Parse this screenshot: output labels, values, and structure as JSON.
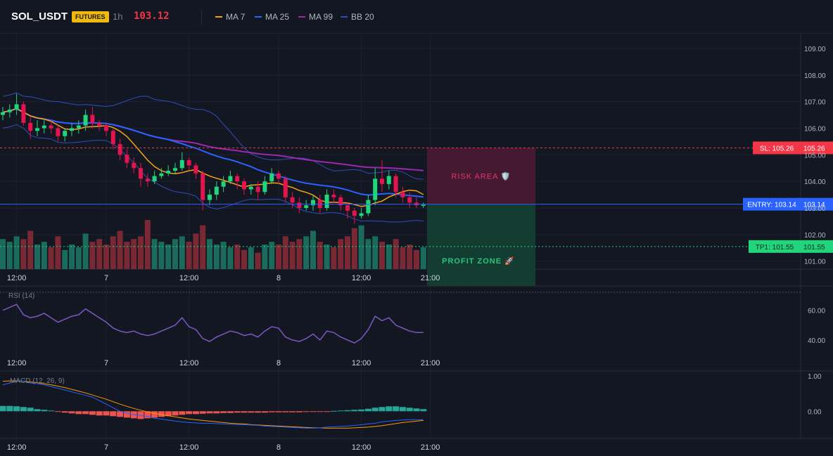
{
  "header": {
    "symbol": "SOL_USDT",
    "badge": "FUTURES",
    "timeframe": "1h",
    "last_price": "103.12"
  },
  "legend": [
    {
      "label": "MA 7",
      "color": "#f7a21b"
    },
    {
      "label": "MA 25",
      "color": "#2962ff"
    },
    {
      "label": "MA 99",
      "color": "#9c27b0"
    },
    {
      "label": "BB 20",
      "color": "#2f4dbb"
    }
  ],
  "colors": {
    "up": "#22d47b",
    "down": "#e4144e",
    "vol_up": "#1b6b5c",
    "vol_down": "#7a2934",
    "rsi": "#7e57c2",
    "macd": "#2962ff",
    "signal": "#ff9800",
    "hist_up": "#26a69a",
    "hist_down": "#ef5350"
  },
  "axes": {
    "price_ticks": [
      "109.00",
      "108.00",
      "107.00",
      "106.00",
      "105.00",
      "104.00",
      "103.00",
      "102.00",
      "101.00"
    ],
    "time_ticks": [
      "12:00",
      "7",
      "12:00",
      "8",
      "12:00",
      "21:00"
    ],
    "rsi_ticks": [
      "60.00",
      "40.00"
    ],
    "macd_ticks": [
      "1.00",
      "0.00"
    ]
  },
  "indicators": {
    "rsi_label": "RSI (14)",
    "macd_label": "MACD (12, 26, 9)"
  },
  "levels": {
    "sl": {
      "value": 105.26,
      "tag": "SL: 105.26",
      "price": "105.26"
    },
    "entry": {
      "value": 103.14,
      "tag": "ENTRY: 103.14",
      "price": "103.14"
    },
    "tp1": {
      "value": 101.55,
      "tag": "TP1: 101.55",
      "price": "101.55"
    }
  },
  "zones": {
    "risk_label": "RISK AREA 🛡️",
    "profit_label": "PROFIT ZONE 🚀"
  },
  "chart_data": {
    "type": "candlestick",
    "open": [
      106.5,
      106.6,
      106.7,
      106.9,
      106.2,
      105.9,
      106.0,
      106.1,
      106.0,
      105.7,
      105.9,
      106.0,
      106.1,
      106.5,
      106.2,
      106.1,
      105.9,
      105.4,
      105.0,
      104.7,
      104.5,
      104.1,
      104.0,
      104.2,
      104.3,
      104.4,
      104.5,
      104.8,
      104.6,
      104.3,
      103.3,
      103.5,
      103.8,
      104.0,
      104.2,
      104.0,
      103.7,
      103.8,
      103.6,
      104.0,
      104.3,
      104.1,
      103.4,
      103.2,
      103.0,
      103.1,
      103.3,
      103.0,
      103.5,
      103.4,
      103.1,
      102.9,
      102.7,
      102.8,
      103.3,
      104.1,
      103.9,
      104.2,
      103.6,
      103.4,
      103.2,
      103.1
    ],
    "close": [
      106.6,
      106.7,
      106.9,
      106.2,
      105.9,
      106.0,
      106.1,
      106.0,
      105.7,
      105.9,
      106.0,
      106.1,
      106.5,
      106.2,
      106.1,
      105.9,
      105.4,
      105.0,
      104.7,
      104.5,
      104.1,
      104.0,
      104.2,
      104.3,
      104.4,
      104.5,
      104.8,
      104.6,
      104.3,
      103.3,
      103.5,
      103.8,
      104.0,
      104.2,
      104.0,
      103.7,
      103.8,
      103.6,
      104.0,
      104.3,
      104.1,
      103.4,
      103.2,
      103.0,
      103.1,
      103.3,
      103.0,
      103.5,
      103.4,
      103.1,
      102.9,
      102.7,
      102.8,
      103.3,
      104.1,
      103.9,
      104.2,
      103.6,
      103.4,
      103.2,
      103.1,
      103.12
    ],
    "high": [
      106.8,
      106.9,
      107.3,
      107.0,
      106.4,
      106.3,
      106.3,
      106.3,
      106.1,
      106.0,
      106.2,
      106.3,
      106.7,
      106.8,
      106.3,
      106.2,
      106.0,
      105.6,
      105.2,
      104.9,
      104.7,
      104.3,
      104.4,
      104.5,
      104.6,
      104.7,
      105.1,
      104.9,
      104.7,
      104.4,
      103.7,
      104.0,
      104.2,
      104.4,
      104.3,
      104.1,
      103.9,
      104.0,
      104.2,
      104.5,
      104.4,
      104.2,
      103.6,
      103.4,
      103.3,
      103.5,
      103.5,
      103.7,
      103.7,
      103.5,
      103.2,
      103.0,
      103.0,
      103.5,
      104.5,
      104.8,
      104.4,
      104.3,
      103.8,
      103.6,
      103.4,
      103.2
    ],
    "low": [
      106.3,
      106.4,
      106.5,
      106.1,
      105.6,
      105.7,
      105.8,
      105.8,
      105.5,
      105.5,
      105.7,
      105.8,
      105.9,
      106.0,
      105.9,
      105.7,
      105.2,
      104.8,
      104.5,
      104.3,
      103.8,
      103.8,
      103.9,
      104.1,
      104.2,
      104.3,
      104.4,
      104.4,
      104.1,
      102.9,
      103.1,
      103.3,
      103.6,
      103.9,
      103.7,
      103.5,
      103.5,
      103.3,
      103.5,
      103.9,
      103.9,
      103.2,
      103.0,
      102.8,
      102.9,
      102.9,
      102.8,
      102.9,
      103.2,
      102.9,
      102.6,
      102.4,
      102.6,
      102.7,
      103.1,
      103.6,
      103.7,
      103.4,
      103.2,
      103.0,
      103.0,
      103.0
    ],
    "volume": [
      0.55,
      0.5,
      0.6,
      0.55,
      0.7,
      0.45,
      0.5,
      0.4,
      0.6,
      0.35,
      0.45,
      0.4,
      0.65,
      0.5,
      0.55,
      0.45,
      0.6,
      0.7,
      0.5,
      0.55,
      0.6,
      0.9,
      0.55,
      0.5,
      0.45,
      0.55,
      0.6,
      0.5,
      0.65,
      0.8,
      0.55,
      0.45,
      0.5,
      0.4,
      0.45,
      0.35,
      0.4,
      0.3,
      0.45,
      0.5,
      0.45,
      0.6,
      0.5,
      0.55,
      0.6,
      0.7,
      0.5,
      0.45,
      0.4,
      0.55,
      0.6,
      0.75,
      0.8,
      0.55,
      0.6,
      0.5,
      0.45,
      0.55,
      0.4,
      0.45,
      0.35,
      0.4
    ],
    "ylim": [
      100.7,
      109.5
    ],
    "rsi": [
      60,
      62,
      64,
      57,
      55,
      56,
      58,
      55,
      52,
      54,
      56,
      57,
      61,
      58,
      55,
      52,
      48,
      46,
      45,
      46,
      44,
      43,
      44,
      46,
      48,
      50,
      55,
      49,
      47,
      41,
      39,
      42,
      44,
      46,
      45,
      43,
      44,
      42,
      46,
      49,
      48,
      42,
      40,
      39,
      41,
      44,
      40,
      46,
      45,
      42,
      40,
      38,
      41,
      47,
      56,
      53,
      55,
      50,
      48,
      46,
      45,
      45
    ],
    "rsi_ylim": [
      30,
      75
    ],
    "macd": [
      0.75,
      0.8,
      0.85,
      0.85,
      0.8,
      0.78,
      0.75,
      0.7,
      0.65,
      0.6,
      0.55,
      0.5,
      0.45,
      0.4,
      0.3,
      0.2,
      0.1,
      0.0,
      -0.05,
      -0.1,
      -0.12,
      -0.15,
      -0.2,
      -0.22,
      -0.25,
      -0.28,
      -0.3,
      -0.32,
      -0.33,
      -0.34,
      -0.34,
      -0.35,
      -0.36,
      -0.37,
      -0.38,
      -0.38,
      -0.39,
      -0.4,
      -0.42,
      -0.43,
      -0.44,
      -0.45,
      -0.46,
      -0.47,
      -0.48,
      -0.48,
      -0.47,
      -0.45,
      -0.44,
      -0.43,
      -0.42,
      -0.4,
      -0.38,
      -0.36,
      -0.34,
      -0.3,
      -0.28,
      -0.26,
      -0.25,
      -0.24,
      -0.24,
      -0.24
    ],
    "signal": [
      0.85,
      0.86,
      0.86,
      0.85,
      0.83,
      0.81,
      0.78,
      0.75,
      0.71,
      0.67,
      0.62,
      0.57,
      0.52,
      0.46,
      0.4,
      0.34,
      0.27,
      0.2,
      0.14,
      0.08,
      0.03,
      -0.02,
      -0.06,
      -0.1,
      -0.13,
      -0.16,
      -0.19,
      -0.22,
      -0.24,
      -0.26,
      -0.28,
      -0.3,
      -0.32,
      -0.34,
      -0.35,
      -0.36,
      -0.38,
      -0.39,
      -0.4,
      -0.41,
      -0.42,
      -0.43,
      -0.44,
      -0.45,
      -0.46,
      -0.47,
      -0.47,
      -0.48,
      -0.48,
      -0.48,
      -0.48,
      -0.47,
      -0.46,
      -0.45,
      -0.43,
      -0.41,
      -0.38,
      -0.35,
      -0.32,
      -0.3,
      -0.28,
      -0.26
    ],
    "hist": [
      0.15,
      0.15,
      0.14,
      0.12,
      0.1,
      0.06,
      0.04,
      0.02,
      -0.02,
      -0.04,
      -0.06,
      -0.08,
      -0.08,
      -0.1,
      -0.12,
      -0.12,
      -0.14,
      -0.16,
      -0.18,
      -0.2,
      -0.22,
      -0.2,
      -0.18,
      -0.16,
      -0.14,
      -0.12,
      -0.1,
      -0.08,
      -0.08,
      -0.07,
      -0.06,
      -0.06,
      -0.05,
      -0.05,
      -0.04,
      -0.04,
      -0.04,
      -0.04,
      -0.04,
      -0.03,
      -0.03,
      -0.03,
      -0.03,
      -0.03,
      -0.02,
      -0.02,
      -0.01,
      -0.01,
      0.01,
      0.02,
      0.03,
      0.04,
      0.05,
      0.07,
      0.1,
      0.12,
      0.14,
      0.14,
      0.12,
      0.1,
      0.08,
      0.06
    ],
    "macd_ylim": [
      -0.75,
      1.1
    ]
  }
}
